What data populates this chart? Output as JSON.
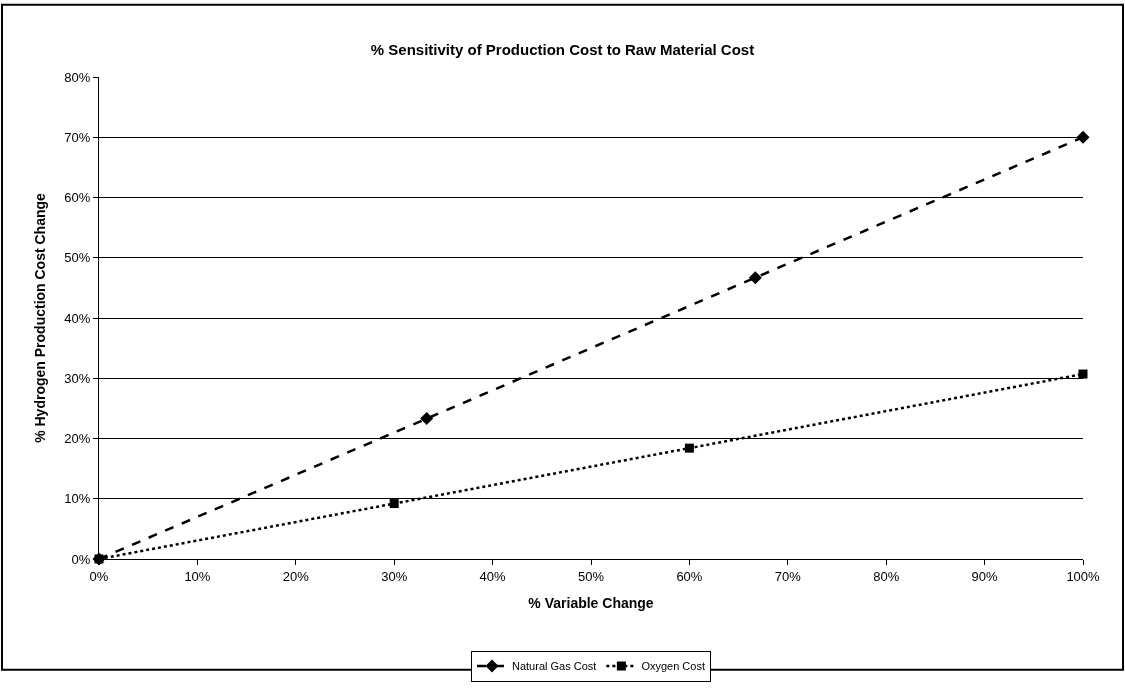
{
  "chart_data": {
    "type": "line",
    "title": "% Sensitivity of Production Cost to Raw Material Cost",
    "xlabel": "% Variable Change",
    "ylabel": "% Hydrogen Production Cost Change",
    "series": [
      {
        "name": "Natural Gas Cost",
        "color": "#000000",
        "x": [
          0,
          33.3,
          66.7,
          100
        ],
        "values": [
          0,
          23.3,
          46.7,
          70
        ],
        "marker": "diamond",
        "line_style": "dashed"
      },
      {
        "name": "Oxygen Cost",
        "color": "#000000",
        "x": [
          0,
          30,
          60,
          100
        ],
        "values": [
          0,
          9.2,
          18.4,
          30.7
        ],
        "marker": "square",
        "line_style": "dotted"
      }
    ],
    "xlim": [
      0,
      100
    ],
    "ylim": [
      0,
      80
    ],
    "xticks": [
      {
        "value": 0,
        "label": "0%"
      },
      {
        "value": 10,
        "label": "10%"
      },
      {
        "value": 20,
        "label": "20%"
      },
      {
        "value": 30,
        "label": "30%"
      },
      {
        "value": 40,
        "label": "40%"
      },
      {
        "value": 50,
        "label": "50%"
      },
      {
        "value": 60,
        "label": "60%"
      },
      {
        "value": 70,
        "label": "70%"
      },
      {
        "value": 80,
        "label": "80%"
      },
      {
        "value": 90,
        "label": "90%"
      },
      {
        "value": 100,
        "label": "100%"
      }
    ],
    "yticks": [
      {
        "value": 0,
        "label": "0%"
      },
      {
        "value": 10,
        "label": "10%"
      },
      {
        "value": 20,
        "label": "20%"
      },
      {
        "value": 30,
        "label": "30%"
      },
      {
        "value": 40,
        "label": "40%"
      },
      {
        "value": 50,
        "label": "50%"
      },
      {
        "value": 60,
        "label": "60%"
      },
      {
        "value": 70,
        "label": "70%"
      },
      {
        "value": 80,
        "label": "80%"
      }
    ],
    "grid": "y",
    "legend": "bottom"
  }
}
